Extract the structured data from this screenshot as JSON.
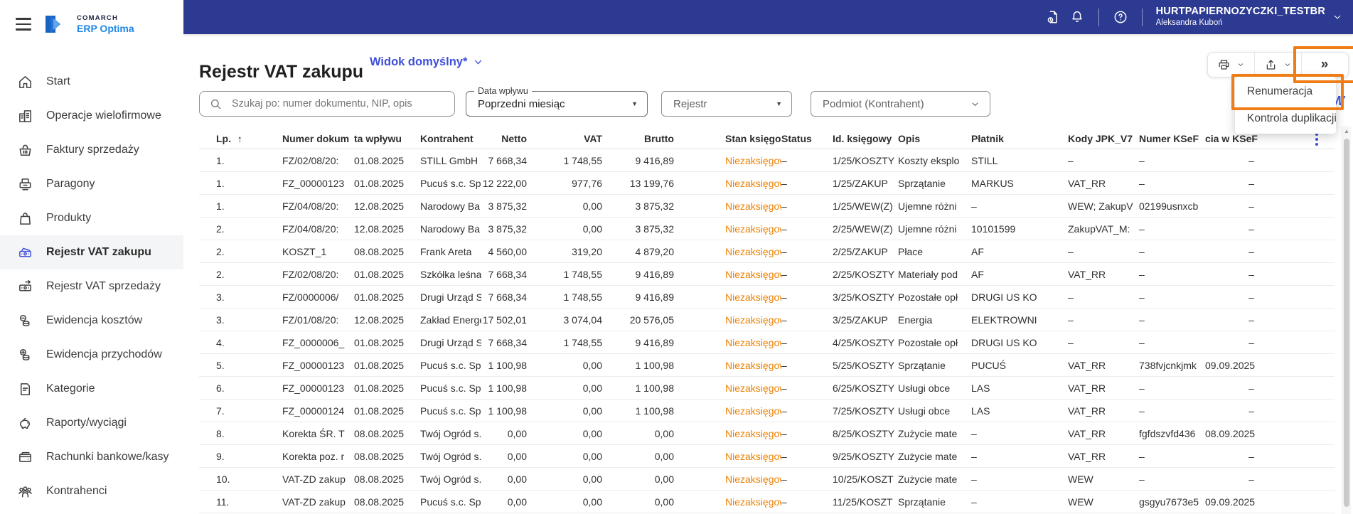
{
  "logo": {
    "brand": "COMARCH",
    "product": "ERP Optima"
  },
  "topbar": {
    "company": "HURTPAPIERNOZYCZKI_TESTBR",
    "user": "Aleksandra Kuboń",
    "icons": [
      "document-history-icon",
      "notifications-icon",
      "help-icon"
    ]
  },
  "sidebar": {
    "items": [
      {
        "icon": "home-icon",
        "label": "Start",
        "active": false
      },
      {
        "icon": "building-icon",
        "label": "Operacje wielofirmowe",
        "active": false
      },
      {
        "icon": "basket-icon",
        "label": "Faktury sprzedaży",
        "active": false
      },
      {
        "icon": "receipt-icon",
        "label": "Paragony",
        "active": false
      },
      {
        "icon": "bag-icon",
        "label": "Produkty",
        "active": false
      },
      {
        "icon": "vat-purchase-icon",
        "label": "Rejestr VAT zakupu",
        "active": true
      },
      {
        "icon": "vat-sales-icon",
        "label": "Rejestr VAT sprzedaży",
        "active": false
      },
      {
        "icon": "costs-icon",
        "label": "Ewidencja kosztów",
        "active": false
      },
      {
        "icon": "income-icon",
        "label": "Ewidencja przychodów",
        "active": false
      },
      {
        "icon": "categories-icon",
        "label": "Kategorie",
        "active": false
      },
      {
        "icon": "reports-icon",
        "label": "Raporty/wyciągi",
        "active": false
      },
      {
        "icon": "wallet-icon",
        "label": "Rachunki bankowe/kasy",
        "active": false
      },
      {
        "icon": "contractors-icon",
        "label": "Kontrahenci",
        "active": false
      }
    ]
  },
  "page": {
    "title": "Rejestr VAT zakupu",
    "view_selector": "Widok domyślny*"
  },
  "toolbar": {
    "buttons": [
      {
        "icon": "printer-icon"
      },
      {
        "icon": "export-icon"
      },
      {
        "icon": "double-chevron-right-icon",
        "glyph": "»"
      }
    ]
  },
  "menu": {
    "items": [
      "Renumeracja",
      "Kontrola duplikacji"
    ]
  },
  "overlay": {
    "fragment": "W"
  },
  "filters": {
    "search_placeholder": "Szukaj po: numer dokumentu, NIP, opis",
    "date_filter": {
      "label": "Data wpływu",
      "value": "Poprzedni miesiąc"
    },
    "register_filter": {
      "label": "Rejestr"
    },
    "entity_filter": {
      "label": "Podmiot (Kontrahent)"
    }
  },
  "table": {
    "columns": [
      {
        "key": "lp",
        "label": "Lp.",
        "sorted": true
      },
      {
        "key": "numer_dokumentu",
        "label": "Numer dokum"
      },
      {
        "key": "data_wplywu",
        "label": "ta wpływu"
      },
      {
        "key": "kontrahent",
        "label": "Kontrahent"
      },
      {
        "key": "netto",
        "label": "Netto"
      },
      {
        "key": "vat",
        "label": "VAT"
      },
      {
        "key": "brutto",
        "label": "Brutto"
      },
      {
        "key": "stan_ksiegowy",
        "label": "Stan księgow"
      },
      {
        "key": "status",
        "label": "Status"
      },
      {
        "key": "id_ksiegowy",
        "label": "Id. księgowy"
      },
      {
        "key": "opis",
        "label": "Opis"
      },
      {
        "key": "platnik",
        "label": "Płatnik"
      },
      {
        "key": "kody_jpk_v7",
        "label": "Kody JPK_V7"
      },
      {
        "key": "numer_ksef",
        "label": "Numer KSeF"
      },
      {
        "key": "data_przyjecia_ksef",
        "label": "cia w KSeF"
      }
    ],
    "rows": [
      [
        "1.",
        "FZ/02/08/20:",
        "01.08.2025",
        "STILL GmbH",
        "7 668,34",
        "1 748,55",
        "9 416,89",
        "Niezaksięgow",
        "–",
        "1/25/KOSZTY",
        "Koszty eksplo",
        "STILL",
        "–",
        "–",
        "–"
      ],
      [
        "1.",
        "FZ_00000123",
        "01.08.2025",
        "Pucuś s.c. Sp",
        "12 222,00",
        "977,76",
        "13 199,76",
        "Niezaksięgow",
        "–",
        "1/25/ZAKUP",
        "Sprzątanie",
        "MARKUS",
        "VAT_RR",
        "–",
        "–"
      ],
      [
        "1.",
        "FZ/04/08/20:",
        "12.08.2025",
        "Narodowy Ba",
        "3 875,32",
        "0,00",
        "3 875,32",
        "Niezaksięgow",
        "–",
        "1/25/WEW(Z)",
        "Ujemne różni",
        "–",
        "WEW; ZakupV",
        "02199usnxcb",
        "–"
      ],
      [
        "2.",
        "FZ/04/08/20:",
        "12.08.2025",
        "Narodowy Ba",
        "3 875,32",
        "0,00",
        "3 875,32",
        "Niezaksięgow",
        "–",
        "2/25/WEW(Z)",
        "Ujemne różni",
        "10101599",
        "ZakupVAT_M:",
        "–",
        "–"
      ],
      [
        "2.",
        "KOSZT_1",
        "08.08.2025",
        "Frank Areta",
        "4 560,00",
        "319,20",
        "4 879,20",
        "Niezaksięgow",
        "–",
        "2/25/ZAKUP",
        "Płace",
        "AF",
        "–",
        "–",
        "–"
      ],
      [
        "2.",
        "FZ/02/08/20:",
        "01.08.2025",
        "Szkółka leśna",
        "7 668,34",
        "1 748,55",
        "9 416,89",
        "Niezaksięgow",
        "–",
        "2/25/KOSZTY",
        "Materiały pod",
        "AF",
        "VAT_RR",
        "–",
        "–"
      ],
      [
        "3.",
        "FZ/0000006/",
        "01.08.2025",
        "Drugi Urząd S",
        "7 668,34",
        "1 748,55",
        "9 416,89",
        "Niezaksięgow",
        "–",
        "3/25/KOSZTY",
        "Pozostałe opł",
        "DRUGI US KO",
        "–",
        "–",
        "–"
      ],
      [
        "3.",
        "FZ/01/08/20:",
        "12.08.2025",
        "Zakład Energe",
        "17 502,01",
        "3 074,04",
        "20 576,05",
        "Niezaksięgow",
        "–",
        "3/25/ZAKUP",
        "Energia",
        "ELEKTROWNI",
        "–",
        "–",
        "–"
      ],
      [
        "4.",
        "FZ_0000006_",
        "01.08.2025",
        "Drugi Urząd S",
        "7 668,34",
        "1 748,55",
        "9 416,89",
        "Niezaksięgow",
        "–",
        "4/25/KOSZTY",
        "Pozostałe opł",
        "DRUGI US KO",
        "–",
        "–",
        "–"
      ],
      [
        "5.",
        "FZ_00000123",
        "01.08.2025",
        "Pucuś s.c. Sp",
        "1 100,98",
        "0,00",
        "1 100,98",
        "Niezaksięgow",
        "–",
        "5/25/KOSZTY",
        "Sprzątanie",
        "PUCUŚ",
        "VAT_RR",
        "738fvjcnkjmk",
        "09.09.2025"
      ],
      [
        "6.",
        "FZ_00000123",
        "01.08.2025",
        "Pucuś s.c. Sp",
        "1 100,98",
        "0,00",
        "1 100,98",
        "Niezaksięgow",
        "–",
        "6/25/KOSZTY",
        "Usługi obce",
        "LAS",
        "VAT_RR",
        "–",
        "–"
      ],
      [
        "7.",
        "FZ_00000124",
        "01.08.2025",
        "Pucuś s.c. Sp",
        "1 100,98",
        "0,00",
        "1 100,98",
        "Niezaksięgow",
        "–",
        "7/25/KOSZTY",
        "Usługi obce",
        "LAS",
        "VAT_RR",
        "–",
        "–"
      ],
      [
        "8.",
        "Korekta ŚR. T",
        "08.08.2025",
        "Twój Ogród s.",
        "0,00",
        "0,00",
        "0,00",
        "Niezaksięgow",
        "–",
        "8/25/KOSZTY",
        "Zużycie mate",
        "–",
        "VAT_RR",
        "fgfdszvfd436",
        "08.09.2025"
      ],
      [
        "9.",
        "Korekta poz. r",
        "08.08.2025",
        "Twój Ogród s.",
        "0,00",
        "0,00",
        "0,00",
        "Niezaksięgow",
        "–",
        "9/25/KOSZTY",
        "Zużycie mate",
        "–",
        "VAT_RR",
        "–",
        "–"
      ],
      [
        "10.",
        "VAT-ZD zakup",
        "08.08.2025",
        "Twój Ogród s.",
        "0,00",
        "0,00",
        "0,00",
        "Niezaksięgow",
        "–",
        "10/25/KOSZT",
        "Zużycie mate",
        "–",
        "WEW",
        "–",
        "–"
      ],
      [
        "11.",
        "VAT-ZD zakup",
        "08.08.2025",
        "Pucuś s.c. Sp",
        "0,00",
        "0,00",
        "0,00",
        "Niezaksięgow",
        "–",
        "11/25/KOSZT",
        "Sprzątanie",
        "–",
        "WEW",
        "gsgyu7673e5",
        "09.09.2025"
      ]
    ]
  },
  "colors": {
    "topbar_blue": "#2c3a92",
    "accent_blue": "#3e4fd8",
    "link_blue": "#3e4fd8",
    "annotation_orange": "#ee7d17",
    "status_orange": "#ee8100",
    "logo_blue": "#1e88e5"
  }
}
